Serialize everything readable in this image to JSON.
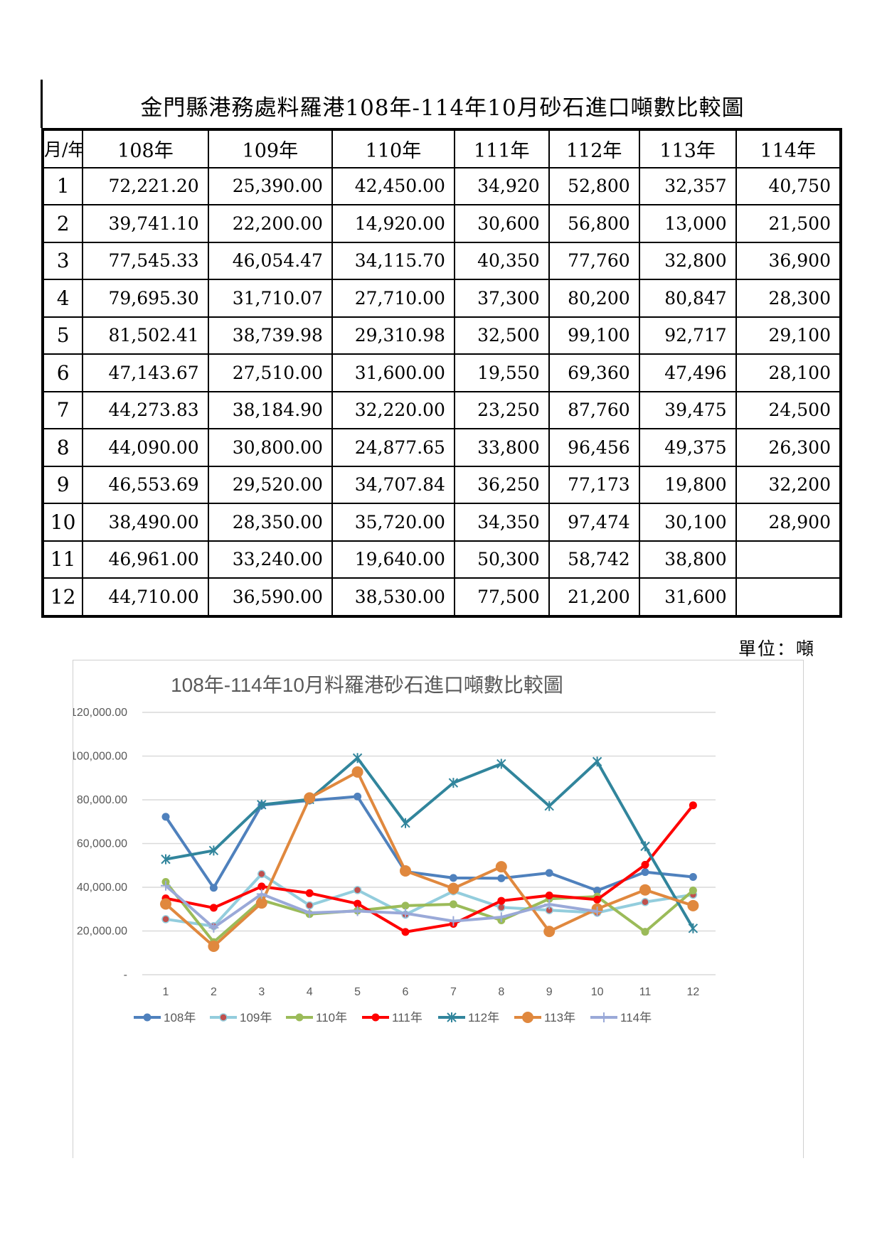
{
  "page_title": "金門縣港務處料羅港108年-114年10月砂石進口噸數比較圖",
  "table": {
    "corner": "月/年",
    "years": [
      "108年",
      "109年",
      "110年",
      "111年",
      "112年",
      "113年",
      "114年"
    ],
    "months": [
      "1",
      "2",
      "3",
      "4",
      "5",
      "6",
      "7",
      "8",
      "9",
      "10",
      "11",
      "12"
    ],
    "rows": [
      [
        "72,221.20",
        "25,390.00",
        "42,450.00",
        "34,920",
        "52,800",
        "32,357",
        "40,750"
      ],
      [
        "39,741.10",
        "22,200.00",
        "14,920.00",
        "30,600",
        "56,800",
        "13,000",
        "21,500"
      ],
      [
        "77,545.33",
        "46,054.47",
        "34,115.70",
        "40,350",
        "77,760",
        "32,800",
        "36,900"
      ],
      [
        "79,695.30",
        "31,710.07",
        "27,710.00",
        "37,300",
        "80,200",
        "80,847",
        "28,300"
      ],
      [
        "81,502.41",
        "38,739.98",
        "29,310.98",
        "32,500",
        "99,100",
        "92,717",
        "29,100"
      ],
      [
        "47,143.67",
        "27,510.00",
        "31,600.00",
        "19,550",
        "69,360",
        "47,496",
        "28,100"
      ],
      [
        "44,273.83",
        "38,184.90",
        "32,220.00",
        "23,250",
        "87,760",
        "39,475",
        "24,500"
      ],
      [
        "44,090.00",
        "30,800.00",
        "24,877.65",
        "33,800",
        "96,456",
        "49,375",
        "26,300"
      ],
      [
        "46,553.69",
        "29,520.00",
        "34,707.84",
        "36,250",
        "77,173",
        "19,800",
        "32,200"
      ],
      [
        "38,490.00",
        "28,350.00",
        "35,720.00",
        "34,350",
        "97,474",
        "30,100",
        "28,900"
      ],
      [
        "46,961.00",
        "33,240.00",
        "19,640.00",
        "50,300",
        "58,742",
        "38,800",
        ""
      ],
      [
        "44,710.00",
        "36,590.00",
        "38,530.00",
        "77,500",
        "21,200",
        "31,600",
        ""
      ]
    ]
  },
  "unit_label": "單位：噸",
  "chart_data": {
    "type": "line",
    "title": "108年-114年10月料羅港砂石進口噸數比較圖",
    "x": [
      "1",
      "2",
      "3",
      "4",
      "5",
      "6",
      "7",
      "8",
      "9",
      "10",
      "11",
      "12"
    ],
    "y_ticks": [
      "-",
      "20,000.00",
      "40,000.00",
      "60,000.00",
      "80,000.00",
      "100,000.00",
      "120,000.00"
    ],
    "ylim": [
      0,
      120000
    ],
    "grid": "horizontal",
    "legend": "bottom",
    "series": [
      {
        "name": "108年",
        "color": "#4f81bd",
        "marker": "circle",
        "values": [
          72221.2,
          39741.1,
          77545.33,
          79695.3,
          81502.41,
          47143.67,
          44273.83,
          44090.0,
          46553.69,
          38490.0,
          46961.0,
          44710.0
        ]
      },
      {
        "name": "109年",
        "color": "#93cddd",
        "marker": "dot",
        "values": [
          25390,
          22200,
          46054.47,
          31710.07,
          38739.98,
          27510,
          38184.9,
          30800,
          29520,
          28350,
          33240,
          36590
        ]
      },
      {
        "name": "110年",
        "color": "#9bbb59",
        "marker": "circle",
        "values": [
          42450,
          14920,
          34115.7,
          27710,
          29310.98,
          31600,
          32220,
          24877.65,
          34707.84,
          35720,
          19640,
          38530
        ]
      },
      {
        "name": "111年",
        "color": "#ff0000",
        "marker": "circle",
        "values": [
          34920,
          30600,
          40350,
          37300,
          32500,
          19550,
          23250,
          33800,
          36250,
          34350,
          50300,
          77500
        ]
      },
      {
        "name": "112年",
        "color": "#31859c",
        "marker": "star",
        "values": [
          52800,
          56800,
          77760,
          80200,
          99100,
          69360,
          87760,
          96456,
          77173,
          97474,
          58742,
          21200
        ]
      },
      {
        "name": "113年",
        "color": "#e0883e",
        "marker": "big-circle",
        "values": [
          32357,
          13000,
          32800,
          80847,
          92717,
          47496,
          39475,
          49375,
          19800,
          30100,
          38800,
          31600
        ]
      },
      {
        "name": "114年",
        "color": "#9aa9d8",
        "marker": "plus",
        "values": [
          40750,
          21500,
          36900,
          28300,
          29100,
          28100,
          24500,
          26300,
          32200,
          28900,
          null,
          null
        ]
      }
    ]
  }
}
